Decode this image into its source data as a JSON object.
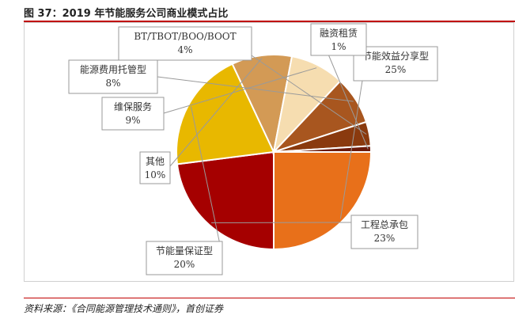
{
  "figure": {
    "title": "图 37：2019 年节能服务公司商业模式占比",
    "source": "资料来源：《合同能源管理技术通则》，首创证券"
  },
  "chart_data": {
    "type": "pie",
    "title": "",
    "start_angle_deg": 0,
    "direction": "clockwise",
    "slices": [
      {
        "label": "节能效益分享型",
        "value": 25,
        "display": "25%",
        "color": "#E8701A"
      },
      {
        "label": "工程总承包",
        "value": 23,
        "display": "23%",
        "color": "#A50000"
      },
      {
        "label": "节能量保证型",
        "value": 20,
        "display": "20%",
        "color": "#E8B800"
      },
      {
        "label": "其他",
        "value": 10,
        "display": "10%",
        "color": "#D39A55"
      },
      {
        "label": "维保服务",
        "value": 9,
        "display": "9%",
        "color": "#F6DDB0"
      },
      {
        "label": "能源费用托管型",
        "value": 8,
        "display": "8%",
        "color": "#A8561F"
      },
      {
        "label": "BT/TBOT/BOO/BOOT",
        "value": 4,
        "display": "4%",
        "color": "#8A3A0E"
      },
      {
        "label": "融资租赁",
        "value": 1,
        "display": "1%",
        "color": "#6B1A0A"
      }
    ]
  }
}
